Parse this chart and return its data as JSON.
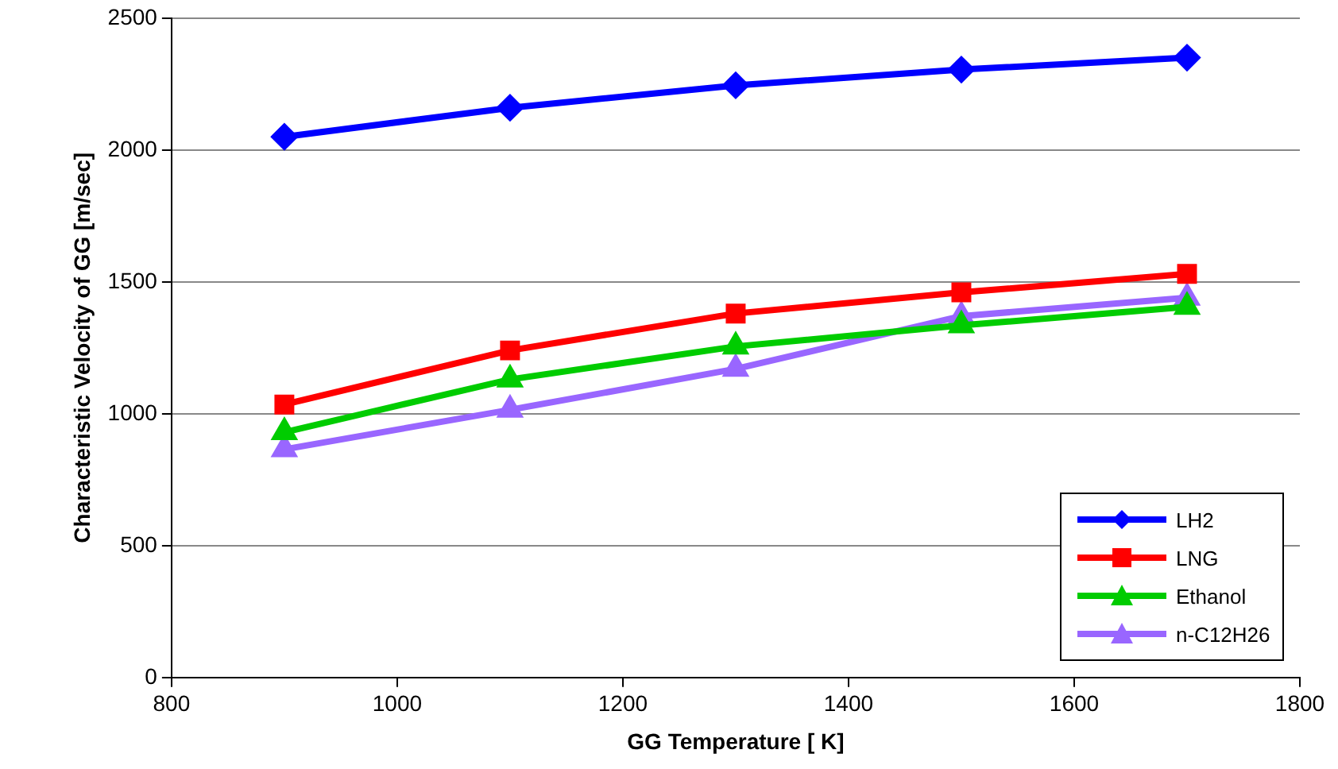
{
  "chart_data": {
    "type": "line",
    "xlabel": "GG Temperature [ K]",
    "ylabel": "Characteristic Velocity of GG [m/sec]",
    "x": [
      900,
      1100,
      1300,
      1500,
      1700
    ],
    "series": [
      {
        "name": "LH2",
        "color": "#0000ff",
        "marker": "diamond",
        "values": [
          2050,
          2160,
          2245,
          2305,
          2350
        ]
      },
      {
        "name": "LNG",
        "color": "#ff0000",
        "marker": "square",
        "values": [
          1035,
          1240,
          1380,
          1460,
          1530
        ]
      },
      {
        "name": "Ethanol",
        "color": "#00cc00",
        "marker": "triangle",
        "values": [
          930,
          1130,
          1255,
          1335,
          1405
        ]
      },
      {
        "name": "n-C12H26",
        "color": "#9966ff",
        "marker": "triangle",
        "values": [
          865,
          1015,
          1170,
          1370,
          1440
        ]
      }
    ],
    "xlim": [
      800,
      1800
    ],
    "xticks": [
      800,
      1000,
      1200,
      1400,
      1600,
      1800
    ],
    "ylim": [
      0,
      2500
    ],
    "yticks": [
      0,
      500,
      1000,
      1500,
      2000,
      2500
    ],
    "grid": "y",
    "legend": "bottom right",
    "line_style": "solid"
  }
}
